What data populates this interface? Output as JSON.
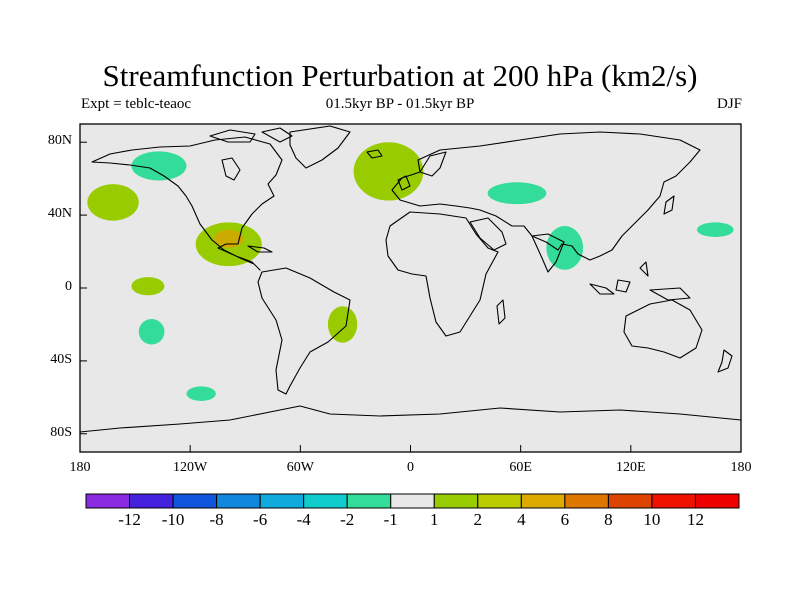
{
  "title": "Streamfunction Perturbation at 200 hPa (km2/s)",
  "subtitle": {
    "left": "Expt = teblc-teaoc",
    "center": "01.5kyr BP - 01.5kyr BP",
    "right": "DJF"
  },
  "map": {
    "projection": "cylindrical-equidistant",
    "background_color": "#e8e8e8",
    "lat_labels": [
      "80N",
      "40N",
      "0",
      "40S",
      "80S"
    ],
    "lat_values": [
      80,
      40,
      0,
      -40,
      -80
    ],
    "lon_labels": [
      "180",
      "120W",
      "60W",
      "0",
      "60E",
      "120E",
      "180"
    ],
    "lon_values": [
      -180,
      -120,
      -60,
      0,
      60,
      120,
      180
    ],
    "anomalies": [
      {
        "name": "northeast-pacific-positive",
        "lon": -162,
        "lat": 47,
        "rx": 14,
        "ry": 10,
        "color": "#99cc00"
      },
      {
        "name": "canada-negative",
        "lon": -137,
        "lat": 67,
        "rx": 15,
        "ry": 8,
        "color": "#33dd99"
      },
      {
        "name": "north-atlantic-positive",
        "lon": -12,
        "lat": 64,
        "rx": 19,
        "ry": 16,
        "color": "#99cc00"
      },
      {
        "name": "gulf-of-mexico-positive",
        "lon": -99,
        "lat": 24,
        "rx": 18,
        "ry": 12,
        "color": "#99cc00"
      },
      {
        "name": "gulf-of-mexico-core",
        "lon": -99,
        "lat": 27,
        "rx": 8,
        "ry": 5,
        "color": "#ccaa00"
      },
      {
        "name": "central-asia-negative",
        "lon": 58,
        "lat": 52,
        "rx": 16,
        "ry": 6,
        "color": "#33dd99"
      },
      {
        "name": "india-negative",
        "lon": 84,
        "lat": 22,
        "rx": 10,
        "ry": 12,
        "color": "#33dd99"
      },
      {
        "name": "northwest-pacific-negative",
        "lon": 166,
        "lat": 32,
        "rx": 10,
        "ry": 4,
        "color": "#33dd99"
      },
      {
        "name": "equatorial-pacific-positive",
        "lon": -143,
        "lat": 1,
        "rx": 9,
        "ry": 5,
        "color": "#99cc00"
      },
      {
        "name": "south-pacific-negative",
        "lon": -141,
        "lat": -24,
        "rx": 7,
        "ry": 7,
        "color": "#33dd99"
      },
      {
        "name": "brazil-positive",
        "lon": -37,
        "lat": -20,
        "rx": 8,
        "ry": 10,
        "color": "#99cc00"
      },
      {
        "name": "southern-ocean-negative",
        "lon": -114,
        "lat": -58,
        "rx": 8,
        "ry": 4,
        "color": "#33dd99"
      }
    ]
  },
  "colorbar": {
    "labels": [
      "-12",
      "-10",
      "-8",
      "-6",
      "-4",
      "-2",
      "-1",
      "1",
      "2",
      "4",
      "6",
      "8",
      "10",
      "12"
    ],
    "colors": [
      "#8a2be2",
      "#4422dd",
      "#1155dd",
      "#1188dd",
      "#11aadd",
      "#11cccc",
      "#33dd99",
      "#e8e8e8",
      "#99cc00",
      "#bbcc00",
      "#ddaa00",
      "#dd7700",
      "#dd4400",
      "#ee1100",
      "#ee0000"
    ]
  }
}
